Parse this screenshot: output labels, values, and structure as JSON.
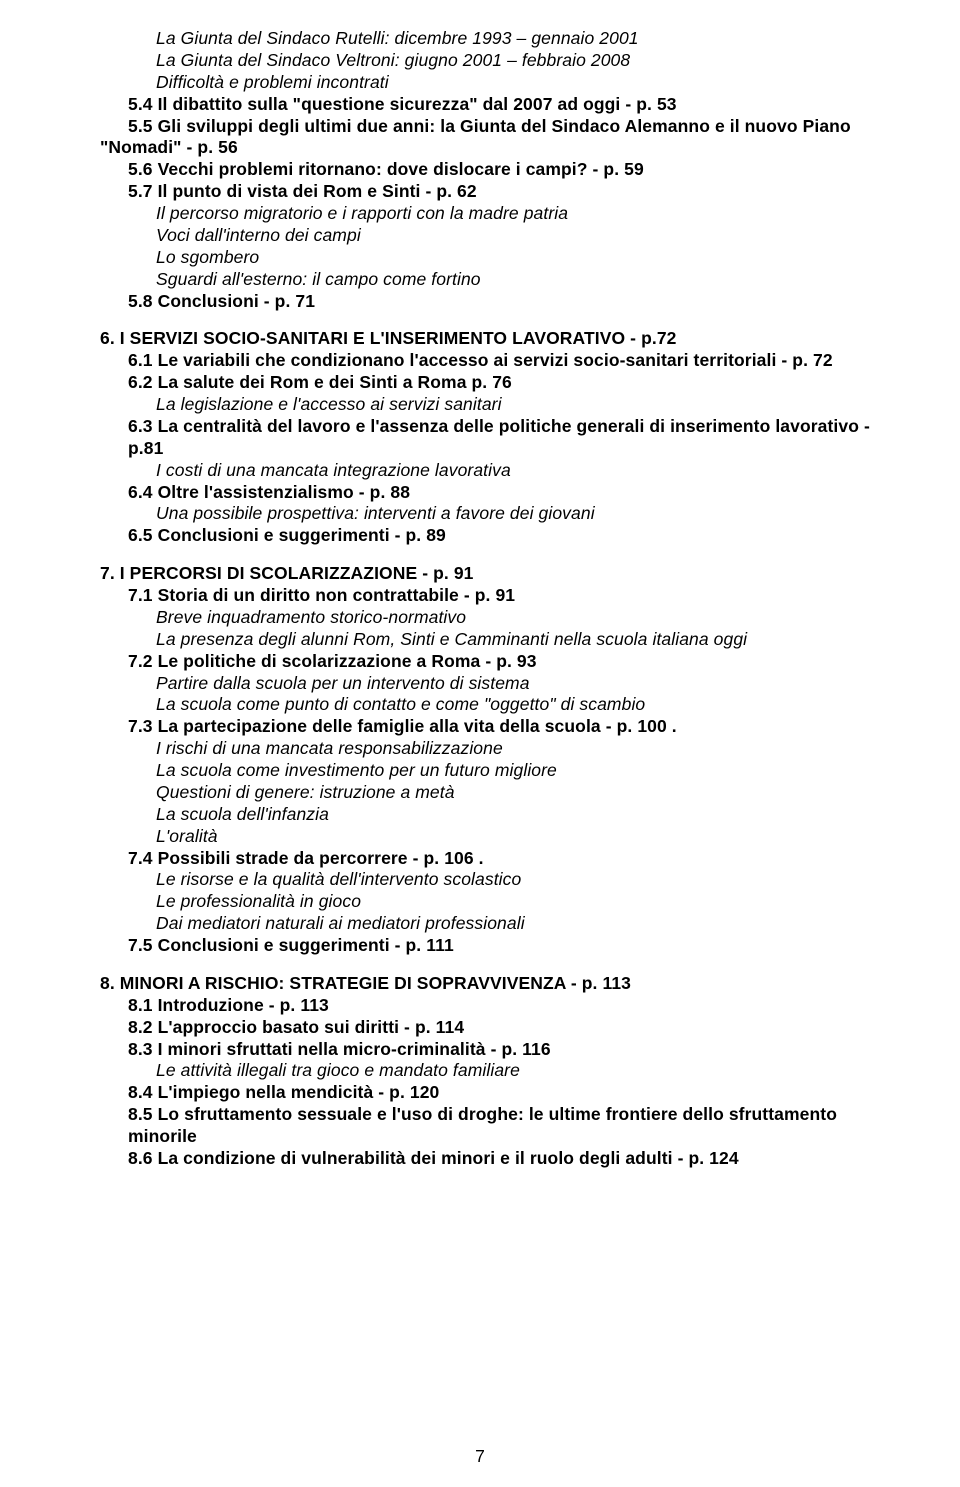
{
  "colors": {
    "bg": "#ffffff",
    "text": "#000000"
  },
  "typography": {
    "family": "Arial",
    "title_size_pt": 13,
    "body_size_pt": 13
  },
  "lines": [
    {
      "cls": "indent2 italic",
      "text": "La Giunta del Sindaco Rutelli: dicembre 1993 – gennaio 2001"
    },
    {
      "cls": "indent2 italic",
      "text": "La Giunta del Sindaco Veltroni: giugno 2001 – febbraio 2008"
    },
    {
      "cls": "indent2 italic",
      "text": "Difficoltà e problemi incontrati"
    },
    {
      "cls": "indent1 bold",
      "text": "5.4 Il dibattito sulla \"questione sicurezza\" dal 2007 ad oggi - p. 53"
    },
    {
      "cls": "indent1 bold",
      "text": "5.5 Gli sviluppi degli ultimi due anni: la Giunta del Sindaco Alemanno e il nuovo Piano"
    },
    {
      "cls": "hang bold",
      "text": "\"Nomadi\" - p. 56"
    },
    {
      "cls": "indent1 bold",
      "text": "5.6 Vecchi problemi ritornano: dove dislocare i campi? - p. 59"
    },
    {
      "cls": "indent1 bold",
      "text": "5.7 Il punto di vista dei Rom e Sinti - p. 62"
    },
    {
      "cls": "indent2 italic",
      "text": "Il percorso migratorio e i rapporti con la madre patria"
    },
    {
      "cls": "indent2 italic",
      "text": "Voci dall'interno dei campi"
    },
    {
      "cls": "indent2 italic",
      "text": "Lo sgombero"
    },
    {
      "cls": "indent2 italic",
      "text": "Sguardi all'esterno: il campo come fortino"
    },
    {
      "cls": "indent1 bold",
      "text": "5.8 Conclusioni - p. 71"
    },
    {
      "cls": "spacer",
      "text": ""
    },
    {
      "cls": "hang bold",
      "text": "6. I SERVIZI SOCIO-SANITARI E L'INSERIMENTO LAVORATIVO - p.72"
    },
    {
      "cls": "indent1 bold",
      "text": "6.1 Le variabili che condizionano l'accesso ai servizi socio-sanitari territoriali - p. 72"
    },
    {
      "cls": "indent1 bold",
      "text": "6.2 La salute dei Rom e dei Sinti a Roma p. 76"
    },
    {
      "cls": "indent2 italic",
      "text": "La legislazione e l'accesso ai servizi sanitari"
    },
    {
      "cls": "indent1 bold",
      "text": "6.3 La centralità del lavoro e l'assenza delle politiche generali di inserimento lavorativo - p.81"
    },
    {
      "cls": "indent2 italic",
      "text": "I costi di una mancata integrazione lavorativa"
    },
    {
      "cls": "indent1 bold",
      "text": "6.4 Oltre l'assistenzialismo - p. 88"
    },
    {
      "cls": "indent2 italic",
      "text": "Una possibile prospettiva: interventi a favore dei  giovani"
    },
    {
      "cls": "indent1 bold",
      "text": "6.5 Conclusioni e suggerimenti - p. 89"
    },
    {
      "cls": "spacer",
      "text": ""
    },
    {
      "cls": "hang bold",
      "text": "7. I PERCORSI DI SCOLARIZZAZIONE - p. 91"
    },
    {
      "cls": "indent1 bold",
      "text": "7.1 Storia di un diritto non contrattabile - p. 91"
    },
    {
      "cls": "indent2 italic",
      "text": "Breve inquadramento storico-normativo"
    },
    {
      "cls": "indent2 italic",
      "text": "La presenza degli alunni Rom, Sinti e Camminanti nella scuola italiana oggi"
    },
    {
      "cls": "indent1 bold",
      "text": "7.2 Le politiche di scolarizzazione a Roma - p. 93"
    },
    {
      "cls": "indent2 italic",
      "text": "Partire dalla scuola per un intervento di sistema"
    },
    {
      "cls": "indent2 italic",
      "text": "La scuola come punto di contatto e come \"oggetto\" di scambio"
    },
    {
      "cls": "indent1 bold",
      "text": "7.3 La partecipazione delle famiglie alla vita della scuola - p. 100      ."
    },
    {
      "cls": "indent2 italic",
      "text": "I rischi di una mancata responsabilizzazione"
    },
    {
      "cls": "indent2 italic",
      "text": "La scuola come investimento per un futuro migliore"
    },
    {
      "cls": "indent2 italic",
      "text": "Questioni di genere: istruzione a metà"
    },
    {
      "cls": "indent2 italic",
      "text": "La scuola dell'infanzia"
    },
    {
      "cls": "indent2 italic",
      "text": "L'oralità"
    },
    {
      "cls": "indent1 bold",
      "text": "7.4 Possibili strade da percorrere - p. 106      ."
    },
    {
      "cls": "indent2 italic",
      "text": "Le risorse e la qualità dell'intervento scolastico"
    },
    {
      "cls": "indent2 italic",
      "text": "Le professionalità in gioco"
    },
    {
      "cls": "indent2 italic",
      "text": "Dai mediatori naturali ai mediatori professionali"
    },
    {
      "cls": "indent1 bold",
      "text": "7.5 Conclusioni e suggerimenti - p. 111"
    },
    {
      "cls": "spacer",
      "text": ""
    },
    {
      "cls": "hang bold",
      "text": "8. MINORI A RISCHIO: STRATEGIE DI SOPRAVVIVENZA - p. 113"
    },
    {
      "cls": "indent1 bold",
      "text": "8.1 Introduzione - p. 113"
    },
    {
      "cls": "indent1 bold",
      "text": "8.2 L'approccio basato sui diritti - p. 114"
    },
    {
      "cls": "indent1 bold",
      "text": "8.3 I minori sfruttati nella micro-criminalità - p. 116"
    },
    {
      "cls": "indent2 italic",
      "text": "Le attività illegali tra gioco e mandato familiare"
    },
    {
      "cls": "indent1 bold",
      "text": "8.4 L'impiego nella mendicità - p. 120"
    },
    {
      "cls": "indent1 bold",
      "text": "8.5 Lo sfruttamento sessuale e l'uso di droghe: le ultime frontiere dello sfruttamento minorile"
    },
    {
      "cls": "indent1 bold",
      "text": "8.6 La condizione di vulnerabilità dei minori e il ruolo degli adulti - p. 124"
    }
  ],
  "page_number": "7"
}
